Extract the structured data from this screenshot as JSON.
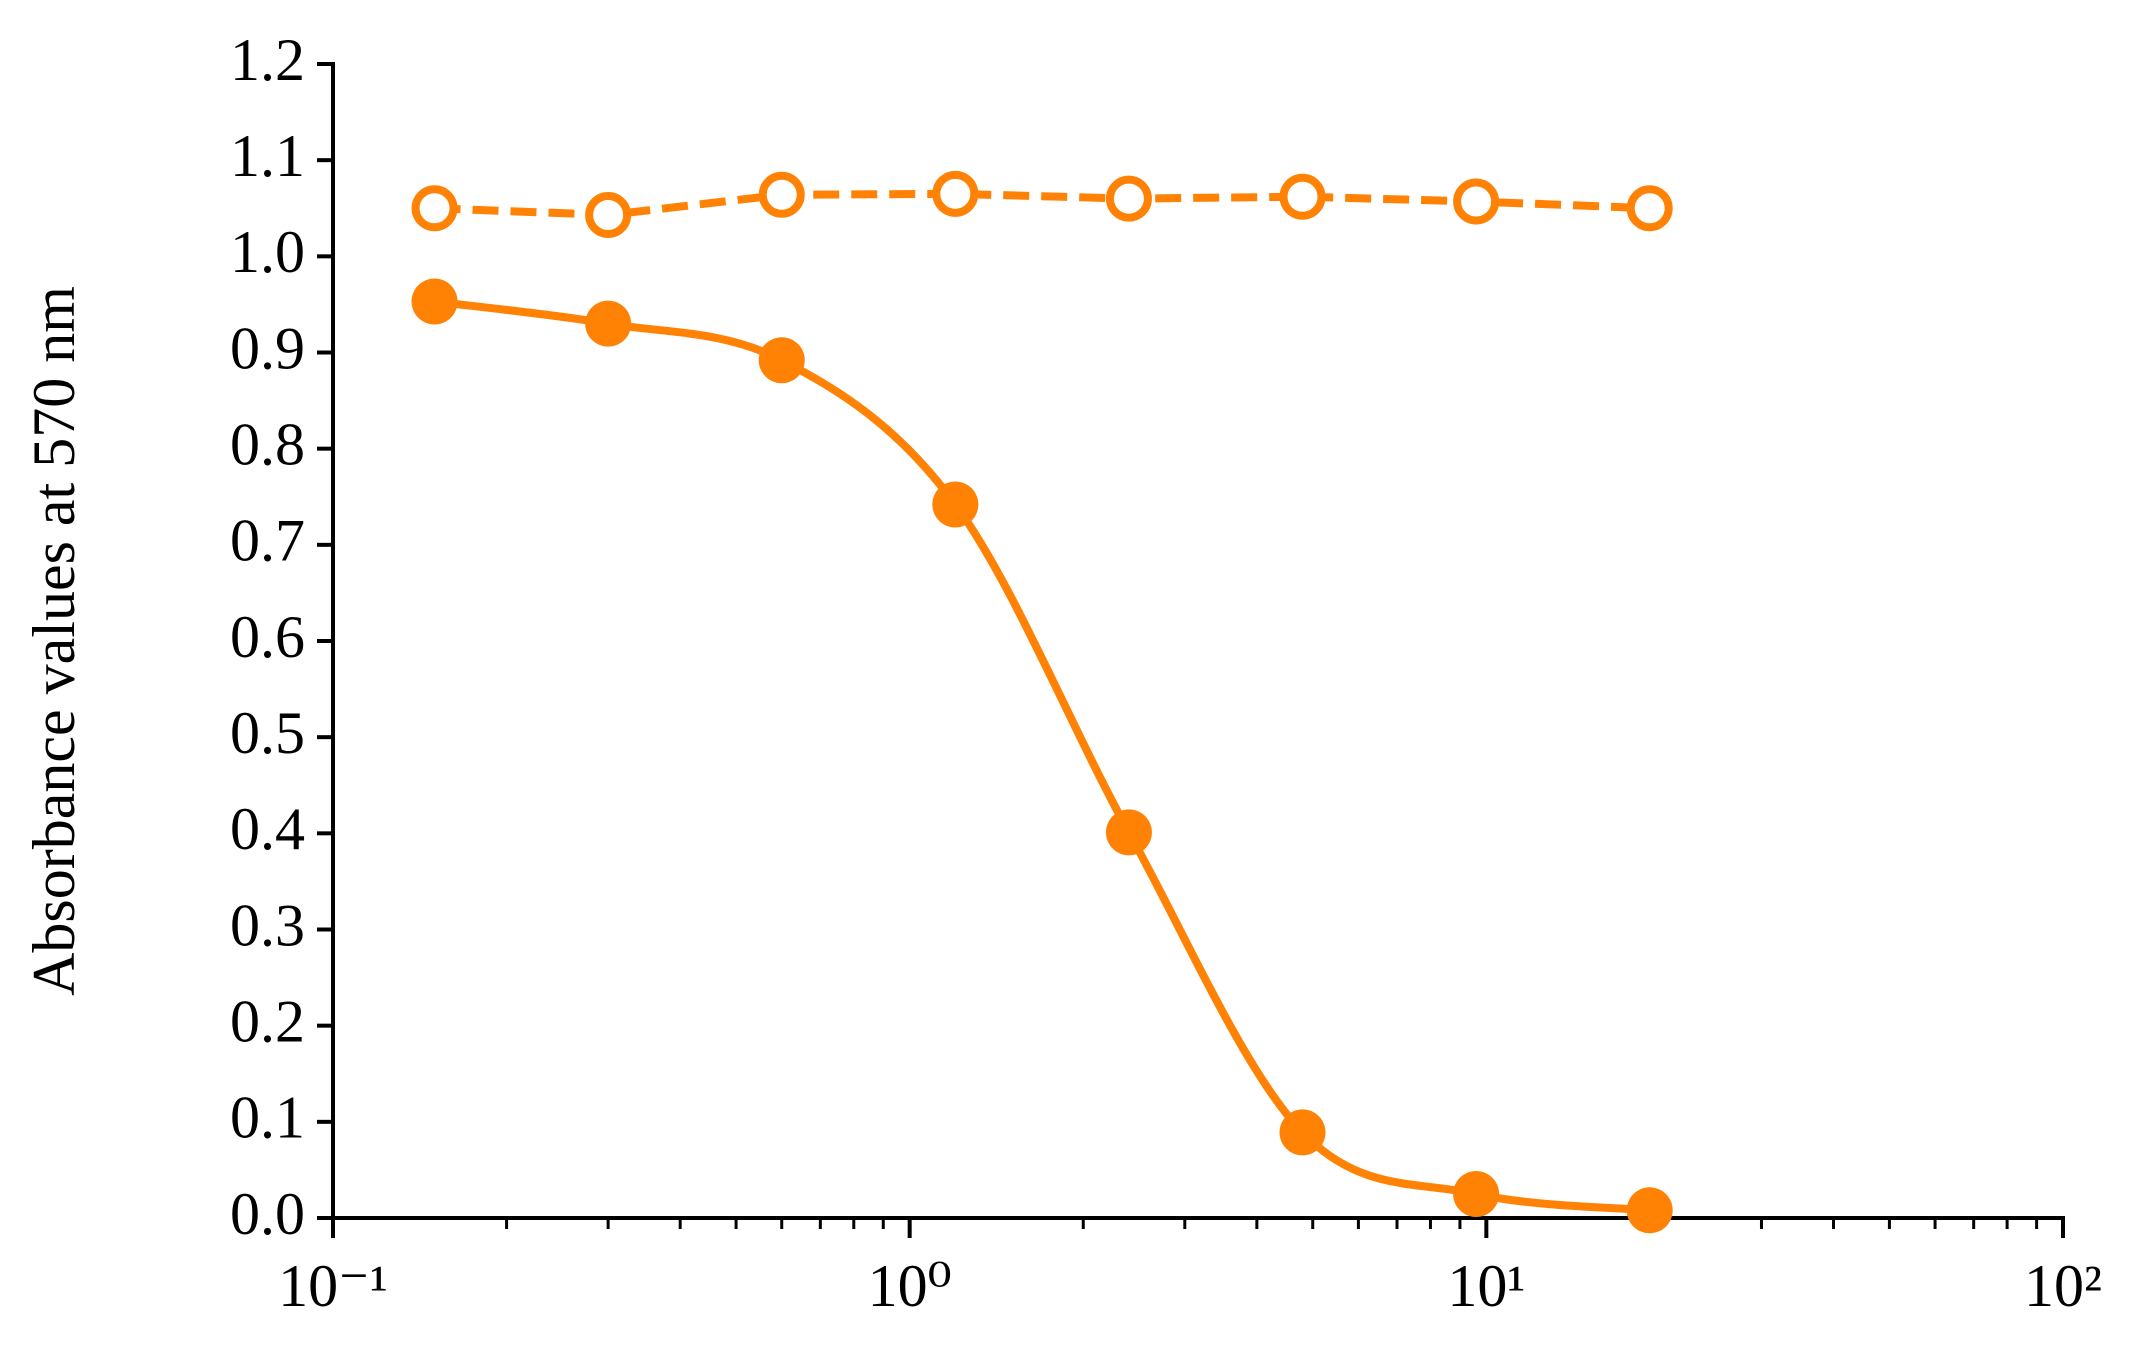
{
  "chart_data": {
    "type": "line",
    "y_label": "Absorbance values at 570 nm",
    "x_scale": "log",
    "xlim": [
      0.1,
      100
    ],
    "xticks": [
      {
        "value": 0.1,
        "label": "10⁻¹"
      },
      {
        "value": 1,
        "label": "10⁰"
      },
      {
        "value": 10,
        "label": "10¹"
      },
      {
        "value": 100,
        "label": "10²"
      }
    ],
    "ylim": [
      0,
      1.2
    ],
    "yticks": [
      {
        "value": 0,
        "label": "0.0"
      },
      0.1,
      0.2,
      0.3,
      0.4,
      0.5,
      0.6,
      0.7,
      0.8,
      0.9,
      {
        "value": 1,
        "label": "1.0"
      },
      1.1,
      1.2
    ],
    "grid": false,
    "x": [
      0.15,
      0.3,
      0.6,
      1.2,
      2.4,
      4.8,
      9.6,
      19.2
    ],
    "series": [
      {
        "color": "#ff8205",
        "marker": "open",
        "line": "dashed",
        "values": [
          1.05,
          1.043,
          1.064,
          1.065,
          1.06,
          1.062,
          1.057,
          1.05
        ]
      },
      {
        "color": "#ff8205",
        "marker": "filled",
        "line": "solid",
        "values": [
          0.953,
          0.93,
          0.892,
          0.742,
          0.401,
          0.089,
          0.025,
          0.008
        ]
      }
    ]
  }
}
